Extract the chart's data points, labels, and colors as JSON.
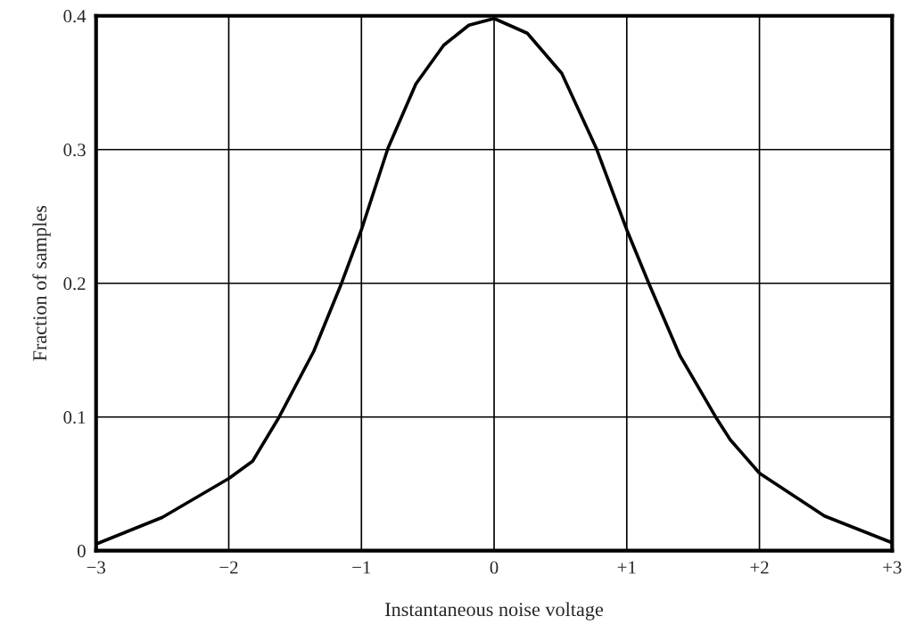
{
  "chart_data": {
    "type": "line",
    "xlabel": "Instantaneous noise voltage",
    "ylabel": "Fraction of samples",
    "x": [
      -3,
      -2.5,
      -2,
      -1.82,
      -1.62,
      -1.36,
      -1.15,
      -1,
      -0.8,
      -0.59,
      -0.38,
      -0.19,
      0,
      0.25,
      0.51,
      0.77,
      1,
      1.17,
      1.4,
      1.67,
      1.78,
      2,
      2.49,
      3
    ],
    "series": [
      {
        "color": "#000000",
        "values": [
          0.005,
          0.025,
          0.054,
          0.067,
          0.1,
          0.149,
          0.2,
          0.24,
          0.301,
          0.349,
          0.378,
          0.393,
          0.398,
          0.387,
          0.357,
          0.301,
          0.24,
          0.199,
          0.146,
          0.1,
          0.083,
          0.058,
          0.026,
          0.006
        ]
      }
    ],
    "xlim": [
      -3,
      3
    ],
    "ylim": [
      0,
      0.4
    ],
    "xticks": [
      {
        "value": -3,
        "label": "−3"
      },
      {
        "value": -2,
        "label": "−2"
      },
      {
        "value": -1,
        "label": "−1"
      },
      0,
      {
        "value": 1,
        "label": "+1"
      },
      {
        "value": 2,
        "label": "+2"
      },
      {
        "value": 3,
        "label": "+3"
      }
    ],
    "yticks": [
      0,
      0.1,
      0.2,
      0.3,
      0.4
    ],
    "grid": true,
    "marker": "none",
    "line_style": "solid"
  }
}
